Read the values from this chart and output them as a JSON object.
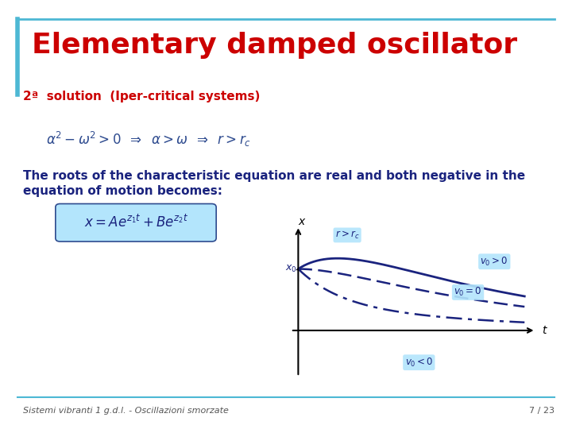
{
  "title": "Elementary damped oscillator",
  "title_color": "#CC0000",
  "title_fontsize": 26,
  "subtitle": "2ª  solution  (Iper-critical systems)",
  "subtitle_color": "#CC0000",
  "subtitle_fontsize": 11,
  "bg_color": "#FFFFFF",
  "border_color": "#4DB8D4",
  "body_text_line1": "The roots of the characteristic equation are real and both negative in the",
  "body_text_line2": "equation of motion becomes:",
  "body_fontsize": 11,
  "footer_left": "Sistemi vibranti 1 g.d.l. - Oscillazioni smorzate",
  "footer_right": "7 / 23",
  "footer_fontsize": 8,
  "curve_color": "#1A237E",
  "label_bg": "#B3E5FC",
  "math_eq_color": "#1A237E",
  "math_eq_bg": "#B3E5FC"
}
